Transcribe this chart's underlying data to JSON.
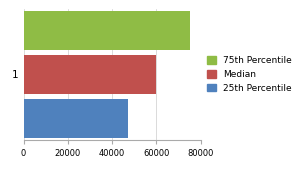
{
  "categories": [
    "1"
  ],
  "series": [
    {
      "label": "75th Percentile",
      "value": 75000,
      "color": "#8fbc45"
    },
    {
      "label": "Median",
      "value": 60000,
      "color": "#c0504d"
    },
    {
      "label": "25th Percentile",
      "value": 47000,
      "color": "#4f81bd"
    }
  ],
  "xlim": [
    0,
    80000
  ],
  "xticks": [
    0,
    20000,
    40000,
    60000,
    80000
  ],
  "background_color": "#ffffff",
  "bar_height": 0.9,
  "legend_fontsize": 6.5,
  "tick_fontsize": 6,
  "ytick_fontsize": 7.5
}
